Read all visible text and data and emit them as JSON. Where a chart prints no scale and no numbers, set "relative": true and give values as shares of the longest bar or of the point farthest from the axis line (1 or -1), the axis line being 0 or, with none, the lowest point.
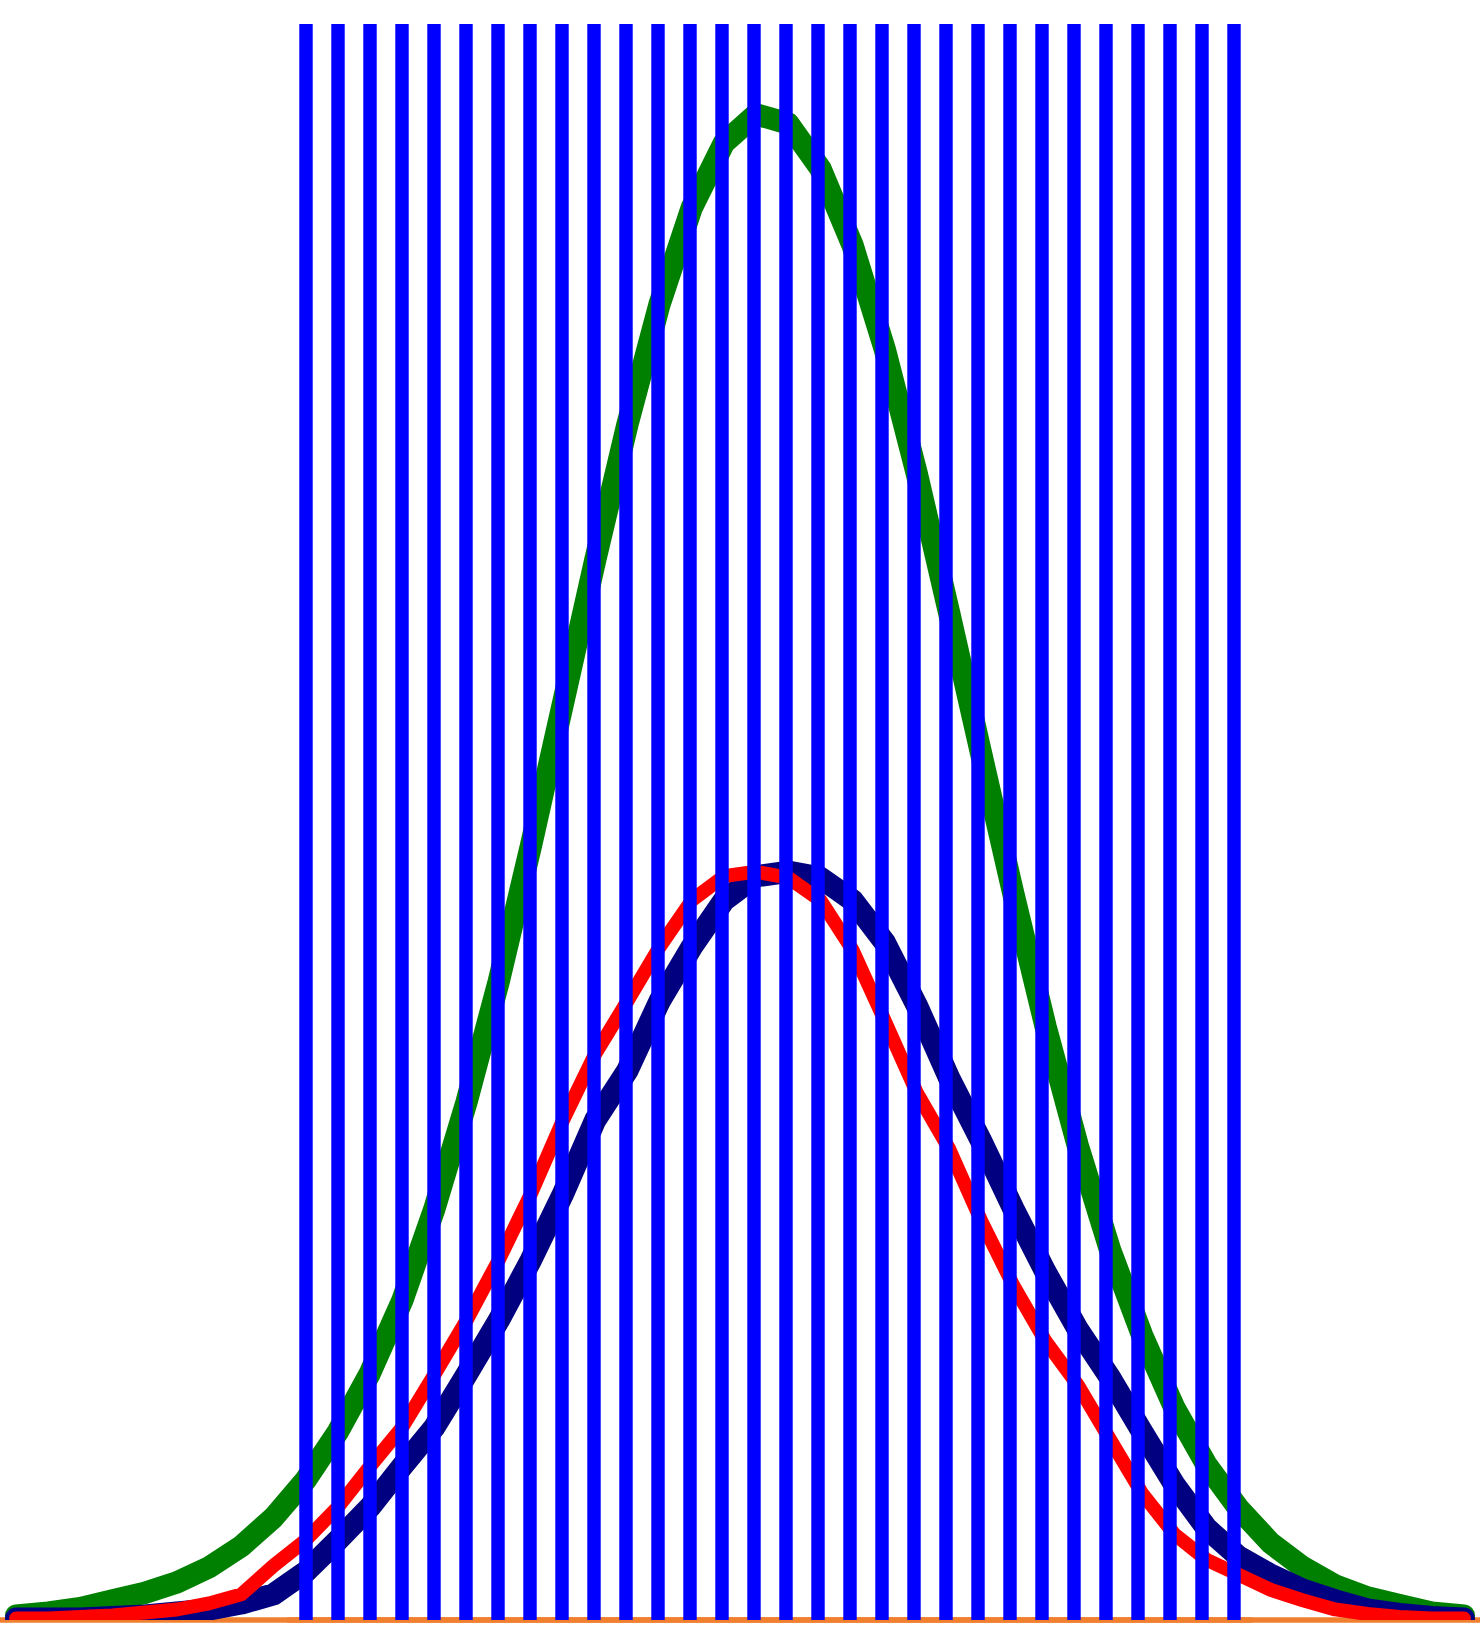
{
  "chart_data": [
    {
      "type": "line",
      "relative": true,
      "categories": [
        null,
        null,
        null,
        null,
        null,
        null,
        null,
        null,
        null,
        null,
        null,
        null,
        null,
        null,
        null,
        null,
        null,
        null,
        null,
        null,
        null,
        null,
        null,
        null,
        null,
        null,
        null,
        null,
        null,
        null,
        null,
        null,
        null,
        null,
        null,
        null,
        null,
        null,
        null,
        null,
        null,
        null,
        null,
        null,
        null,
        null
      ],
      "series": [
        {
          "color": "#008000",
          "values": [
            0.003,
            0.005,
            0.008,
            0.013,
            0.018,
            0.025,
            0.035,
            0.049,
            0.068,
            0.093,
            0.125,
            0.164,
            0.212,
            0.273,
            0.344,
            0.424,
            0.514,
            0.609,
            0.704,
            0.794,
            0.874,
            0.938,
            0.981,
            1,
            0.994,
            0.964,
            0.913,
            0.844,
            0.761,
            0.669,
            0.575,
            0.482,
            0.394,
            0.315,
            0.246,
            0.189,
            0.141,
            0.103,
            0.074,
            0.051,
            0.035,
            0.023,
            0.015,
            0.01,
            0.005,
            0.003
          ]
        },
        {
          "color": "#ff0000",
          "values": [
            0.001,
            0.001,
            0.002,
            0.003,
            0.005,
            0.007,
            0.011,
            0.017,
            0.036,
            0.053,
            0.075,
            0.102,
            0.128,
            0.163,
            0.199,
            0.239,
            0.283,
            0.332,
            0.376,
            0.411,
            0.447,
            0.478,
            0.494,
            0.497,
            0.493,
            0.478,
            0.445,
            0.398,
            0.35,
            0.313,
            0.265,
            0.222,
            0.185,
            0.156,
            0.12,
            0.084,
            0.057,
            0.04,
            0.03,
            0.02,
            0.013,
            0.007,
            0.004,
            0.002,
            0.001,
            0.001
          ]
        },
        {
          "color": "#000080",
          "values": [
            0.001,
            0.001,
            0.001,
            0.002,
            0.003,
            0.005,
            0.007,
            0.011,
            0.017,
            0.032,
            0.053,
            0.075,
            0.102,
            0.128,
            0.163,
            0.199,
            0.239,
            0.283,
            0.332,
            0.365,
            0.411,
            0.447,
            0.478,
            0.494,
            0.497,
            0.493,
            0.478,
            0.45,
            0.408,
            0.36,
            0.318,
            0.273,
            0.231,
            0.193,
            0.161,
            0.125,
            0.09,
            0.061,
            0.042,
            0.03,
            0.02,
            0.013,
            0.007,
            0.004,
            0.002,
            0.001
          ]
        }
      ]
    },
    {
      "type": "bar",
      "relative": true,
      "categories": [
        null,
        null,
        null,
        null,
        null,
        null,
        null,
        null,
        null,
        null,
        null,
        null,
        null,
        null,
        null,
        null,
        null,
        null,
        null,
        null,
        null,
        null,
        null,
        null,
        null,
        null,
        null,
        null,
        null,
        null
      ],
      "series": [
        {
          "color": "#0000ff",
          "values": [
            1,
            1,
            1,
            1,
            1,
            1,
            1,
            1,
            1,
            1,
            1,
            1,
            1,
            1,
            1,
            1,
            1,
            1,
            1,
            1,
            1,
            1,
            1,
            1,
            1,
            1,
            1,
            1,
            1,
            1
          ]
        }
      ]
    }
  ]
}
